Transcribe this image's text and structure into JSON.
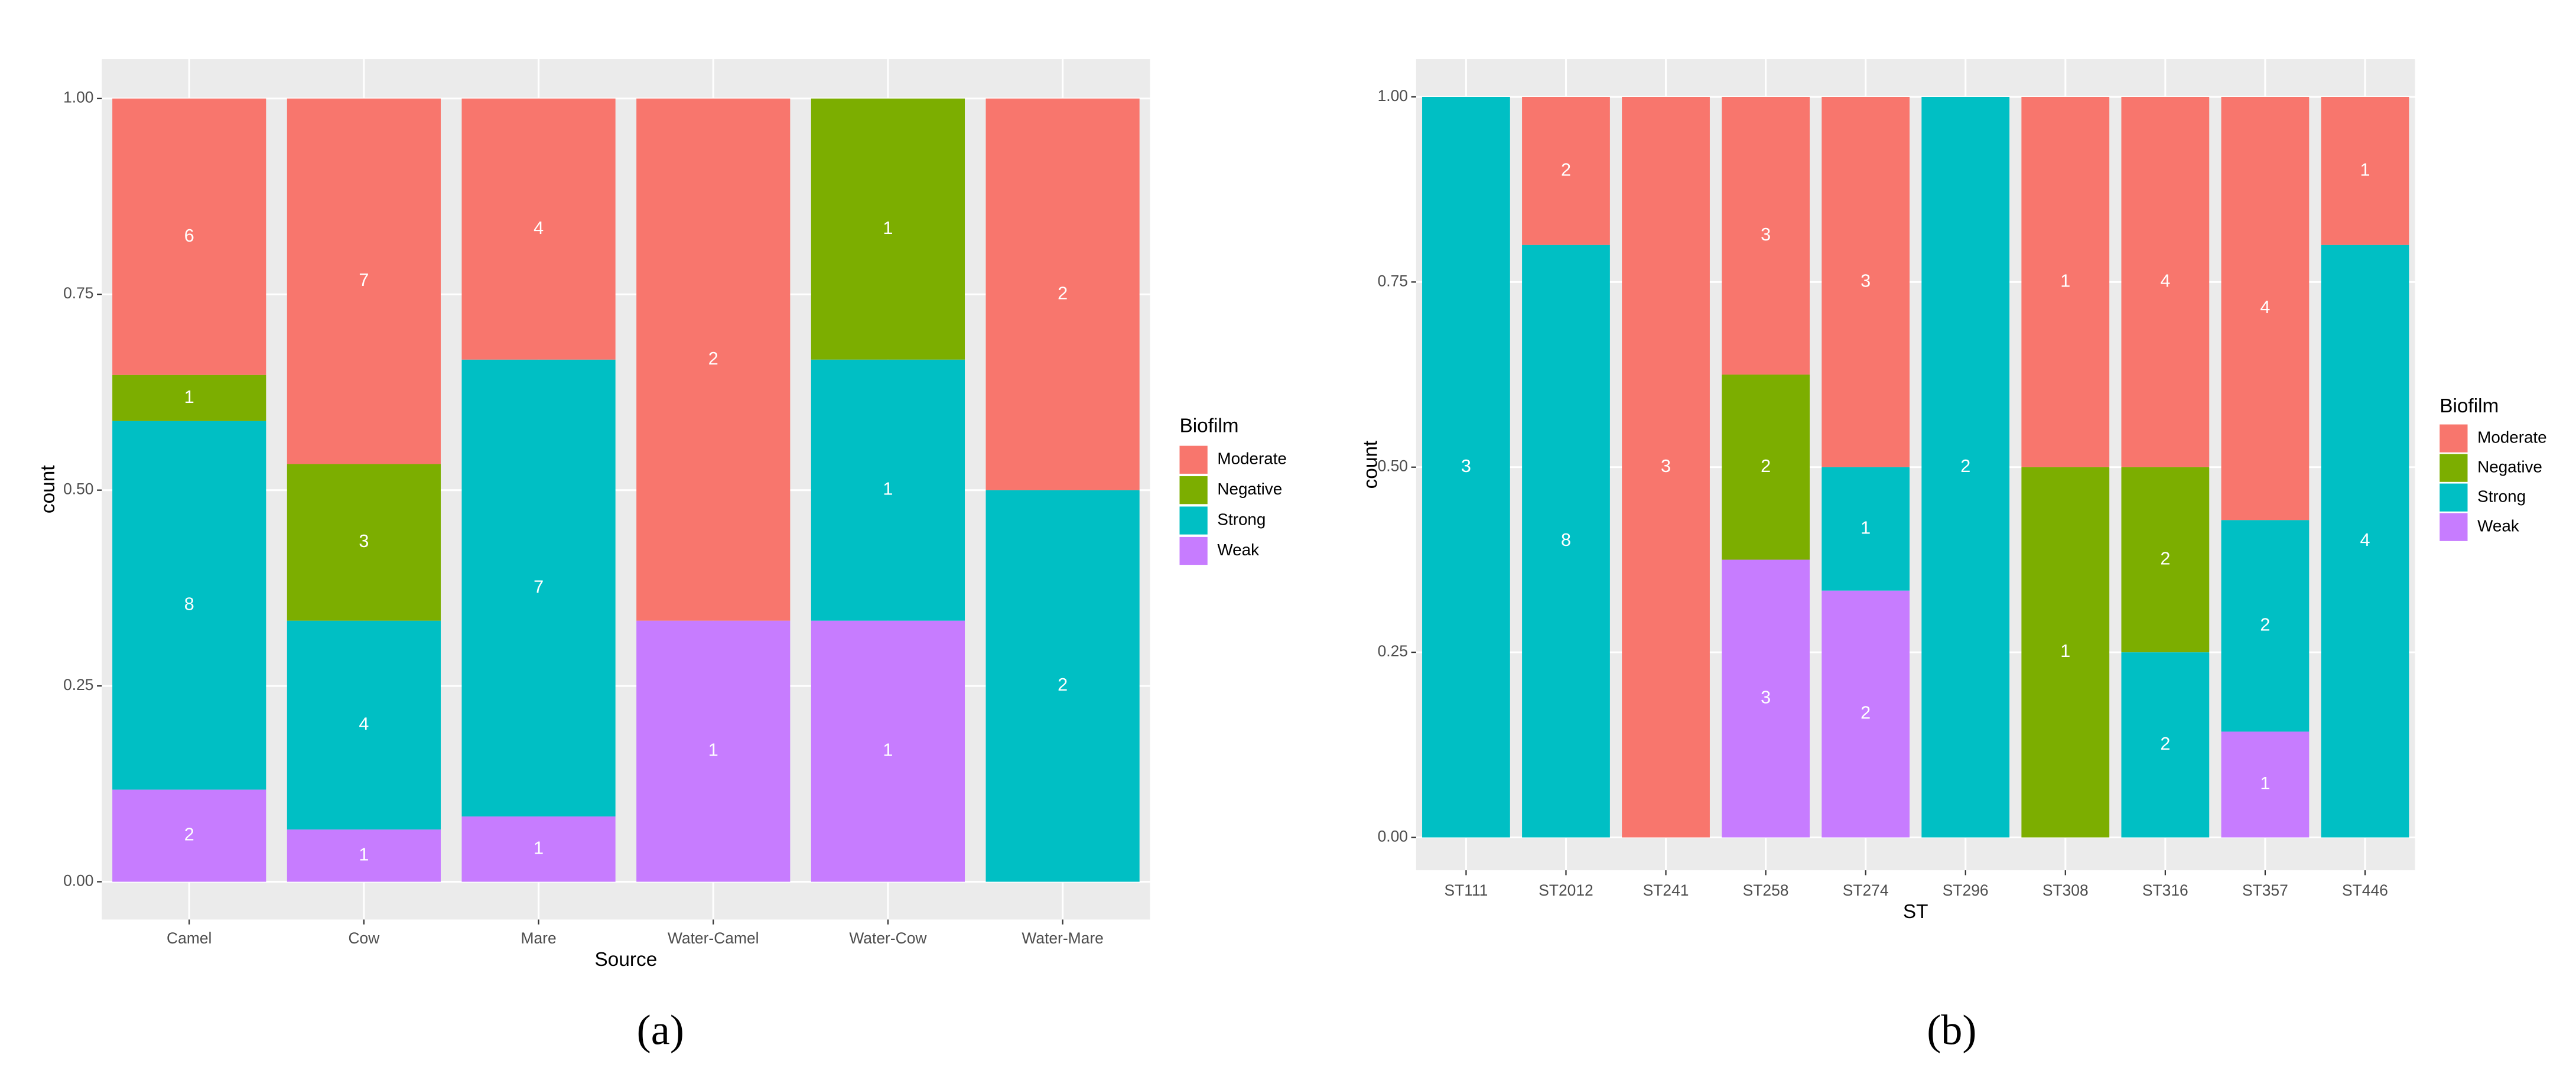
{
  "chart_data": [
    {
      "type": "bar",
      "stacked": true,
      "normalize": true,
      "caption": "(a)",
      "x_label": "Source",
      "y_label": "count",
      "legend_title": "Biofilm",
      "grid": true,
      "categories": [
        "Camel",
        "Cow",
        "Mare",
        "Water-Camel",
        "Water-Cow",
        "Water-Mare"
      ],
      "series": [
        {
          "name": "Moderate",
          "color": "#F8766D",
          "values": [
            6,
            7,
            4,
            2,
            null,
            2
          ]
        },
        {
          "name": "Negative",
          "color": "#7CAE00",
          "values": [
            1,
            3,
            null,
            null,
            1,
            null
          ]
        },
        {
          "name": "Strong",
          "color": "#00BFC4",
          "values": [
            8,
            4,
            7,
            null,
            1,
            2
          ]
        },
        {
          "name": "Weak",
          "color": "#C77CFF",
          "values": [
            2,
            1,
            1,
            1,
            1,
            null
          ]
        }
      ],
      "ylim": [
        0,
        1
      ],
      "yticks": [
        {
          "value": 0,
          "label": "0.00"
        },
        {
          "value": 0.25,
          "label": "0.25"
        },
        {
          "value": 0.5,
          "label": "0.50"
        },
        {
          "value": 0.75,
          "label": "0.75"
        },
        {
          "value": 1,
          "label": "1.00"
        }
      ]
    },
    {
      "type": "bar",
      "stacked": true,
      "normalize": true,
      "caption": "(b)",
      "x_label": "ST",
      "y_label": "count",
      "legend_title": "Biofilm",
      "grid": true,
      "categories": [
        "ST111",
        "ST2012",
        "ST241",
        "ST258",
        "ST274",
        "ST296",
        "ST308",
        "ST316",
        "ST357",
        "ST446"
      ],
      "series": [
        {
          "name": "Moderate",
          "color": "#F8766D",
          "values": [
            null,
            2,
            3,
            3,
            3,
            null,
            1,
            4,
            4,
            1
          ]
        },
        {
          "name": "Negative",
          "color": "#7CAE00",
          "values": [
            null,
            null,
            null,
            2,
            null,
            null,
            1,
            2,
            null,
            null
          ]
        },
        {
          "name": "Strong",
          "color": "#00BFC4",
          "values": [
            3,
            8,
            null,
            null,
            1,
            2,
            null,
            2,
            2,
            4
          ]
        },
        {
          "name": "Weak",
          "color": "#C77CFF",
          "values": [
            null,
            null,
            null,
            3,
            2,
            null,
            null,
            null,
            1,
            null
          ]
        }
      ],
      "ylim": [
        0,
        1
      ],
      "yticks": [
        {
          "value": 0,
          "label": "0.00"
        },
        {
          "value": 0.25,
          "label": "0.25"
        },
        {
          "value": 0.5,
          "label": "0.50"
        },
        {
          "value": 0.75,
          "label": "0.75"
        },
        {
          "value": 1,
          "label": "1.00"
        }
      ]
    }
  ]
}
